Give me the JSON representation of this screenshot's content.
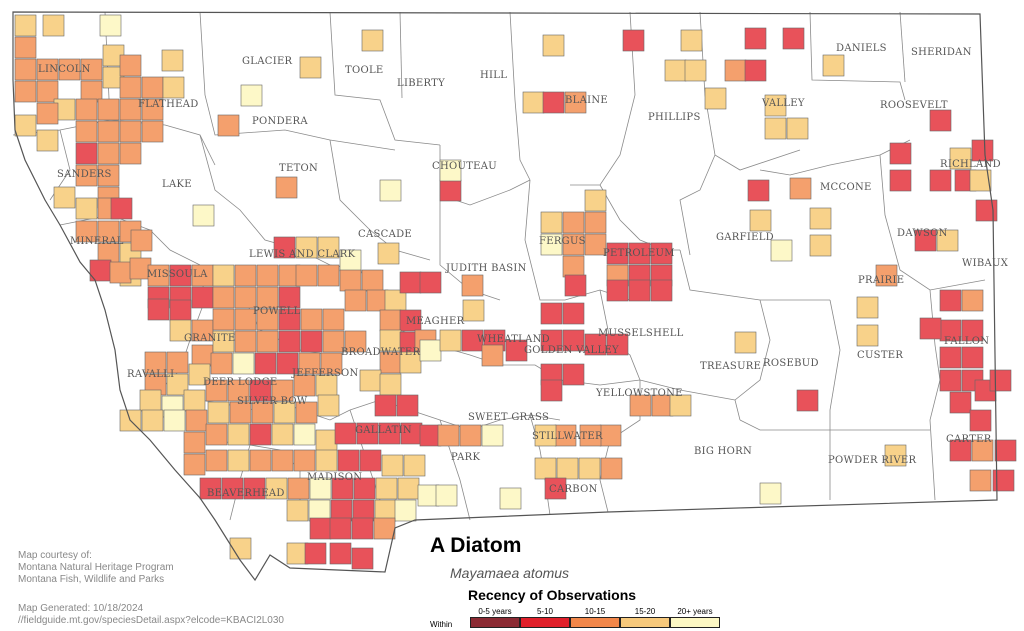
{
  "title": "A Diatom",
  "scientific_name": "Mayamaea atomus",
  "credits": {
    "line1": "Map courtesy of:",
    "line2": "Montana Natural Heritage Program",
    "line3": "Montana Fish, Wildlife and Parks",
    "generated": "Map Generated: 10/18/2024",
    "url": "//fieldguide.mt.gov/speciesDetail.aspx?elcode=KBACI2L030"
  },
  "legend": {
    "title": "Recency of Observations",
    "within_label": "Within",
    "items": [
      {
        "label": "0-5 years",
        "color": "#8b2a33"
      },
      {
        "label": "5-10",
        "color": "#e0202a"
      },
      {
        "label": "10-15",
        "color": "#f2874a"
      },
      {
        "label": "15-20",
        "color": "#f7c97c"
      },
      {
        "label": "20+ years",
        "color": "#fdf8c4"
      }
    ]
  },
  "colors": {
    "red": "#e8525a",
    "orange": "#f4a06d",
    "tan": "#f8d28a",
    "cream": "#fdf8c8",
    "county_line": "#777777",
    "cell_border": "#666666"
  },
  "counties": [
    "LINCOLN",
    "FLATHEAD",
    "GLACIER",
    "TOOLE",
    "LIBERTY",
    "HILL",
    "BLAINE",
    "PHILLIPS",
    "VALLEY",
    "DANIELS",
    "SHERIDAN",
    "ROOSEVELT",
    "PONDERA",
    "TETON",
    "CHOUTEAU",
    "SANDERS",
    "LAKE",
    "MINERAL",
    "MISSOULA",
    "LEWIS AND CLARK",
    "CASCADE",
    "JUDITH BASIN",
    "FERGUS",
    "PETROLEUM",
    "GARFIELD",
    "MCCONE",
    "RICHLAND",
    "DAWSON",
    "WIBAUX",
    "PRAIRIE",
    "POWELL",
    "MEAGHER",
    "WHEATLAND",
    "GOLDEN VALLEY",
    "MUSSELSHELL",
    "ROSEBUD",
    "CUSTER",
    "FALLON",
    "GRANITE",
    "RAVALLI",
    "DEER LODGE",
    "SILVER BOW",
    "JEFFERSON",
    "BROADWATER",
    "TREASURE",
    "YELLOWSTONE",
    "STILLWATER",
    "SWEET GRASS",
    "PARK",
    "GALLATIN",
    "MADISON",
    "BEAVERHEAD",
    "CARBON",
    "BIG HORN",
    "POWDER RIVER",
    "CARTER"
  ]
}
